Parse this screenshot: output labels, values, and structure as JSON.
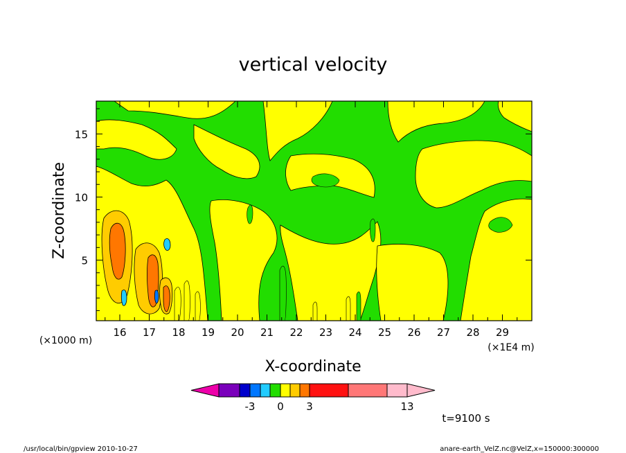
{
  "chart_data": {
    "type": "heatmap",
    "title": "vertical velocity",
    "xlabel": "X-coordinate",
    "ylabel": "Z-coordinate",
    "x_unit": "(×1E4 m)",
    "y_unit": "(×1000 m)",
    "xlim": [
      15.2,
      30.0
    ],
    "ylim": [
      0.2,
      17.6
    ],
    "x_ticks": [
      "16",
      "17",
      "18",
      "19",
      "20",
      "21",
      "22",
      "23",
      "24",
      "25",
      "26",
      "27",
      "28",
      "29"
    ],
    "y_ticks": [
      "5",
      "10",
      "15"
    ],
    "colorbar": {
      "labels": [
        {
          "text": "-3",
          "value": -3
        },
        {
          "text": "0",
          "value": 0
        },
        {
          "text": "3",
          "value": 3
        },
        {
          "text": "13",
          "value": 13
        }
      ],
      "colors": [
        "#ee00aa",
        "#7a00bb",
        "#0000cc",
        "#0077ff",
        "#22ccff",
        "#22dd00",
        "#ffff00",
        "#ffcc00",
        "#ff7700",
        "#ff1111",
        "#ff7777",
        "#ffbbcc"
      ]
    },
    "time_label": "t=9100 s",
    "palette": {
      "negative": "#22dd00",
      "positive": "#ffff00",
      "strong_positive": "#ff7700"
    }
  },
  "footer": {
    "left": "/usr/local/bin/gpview   2010-10-27",
    "right": "anare-earth_VelZ.nc@VelZ,x=150000:300000"
  }
}
